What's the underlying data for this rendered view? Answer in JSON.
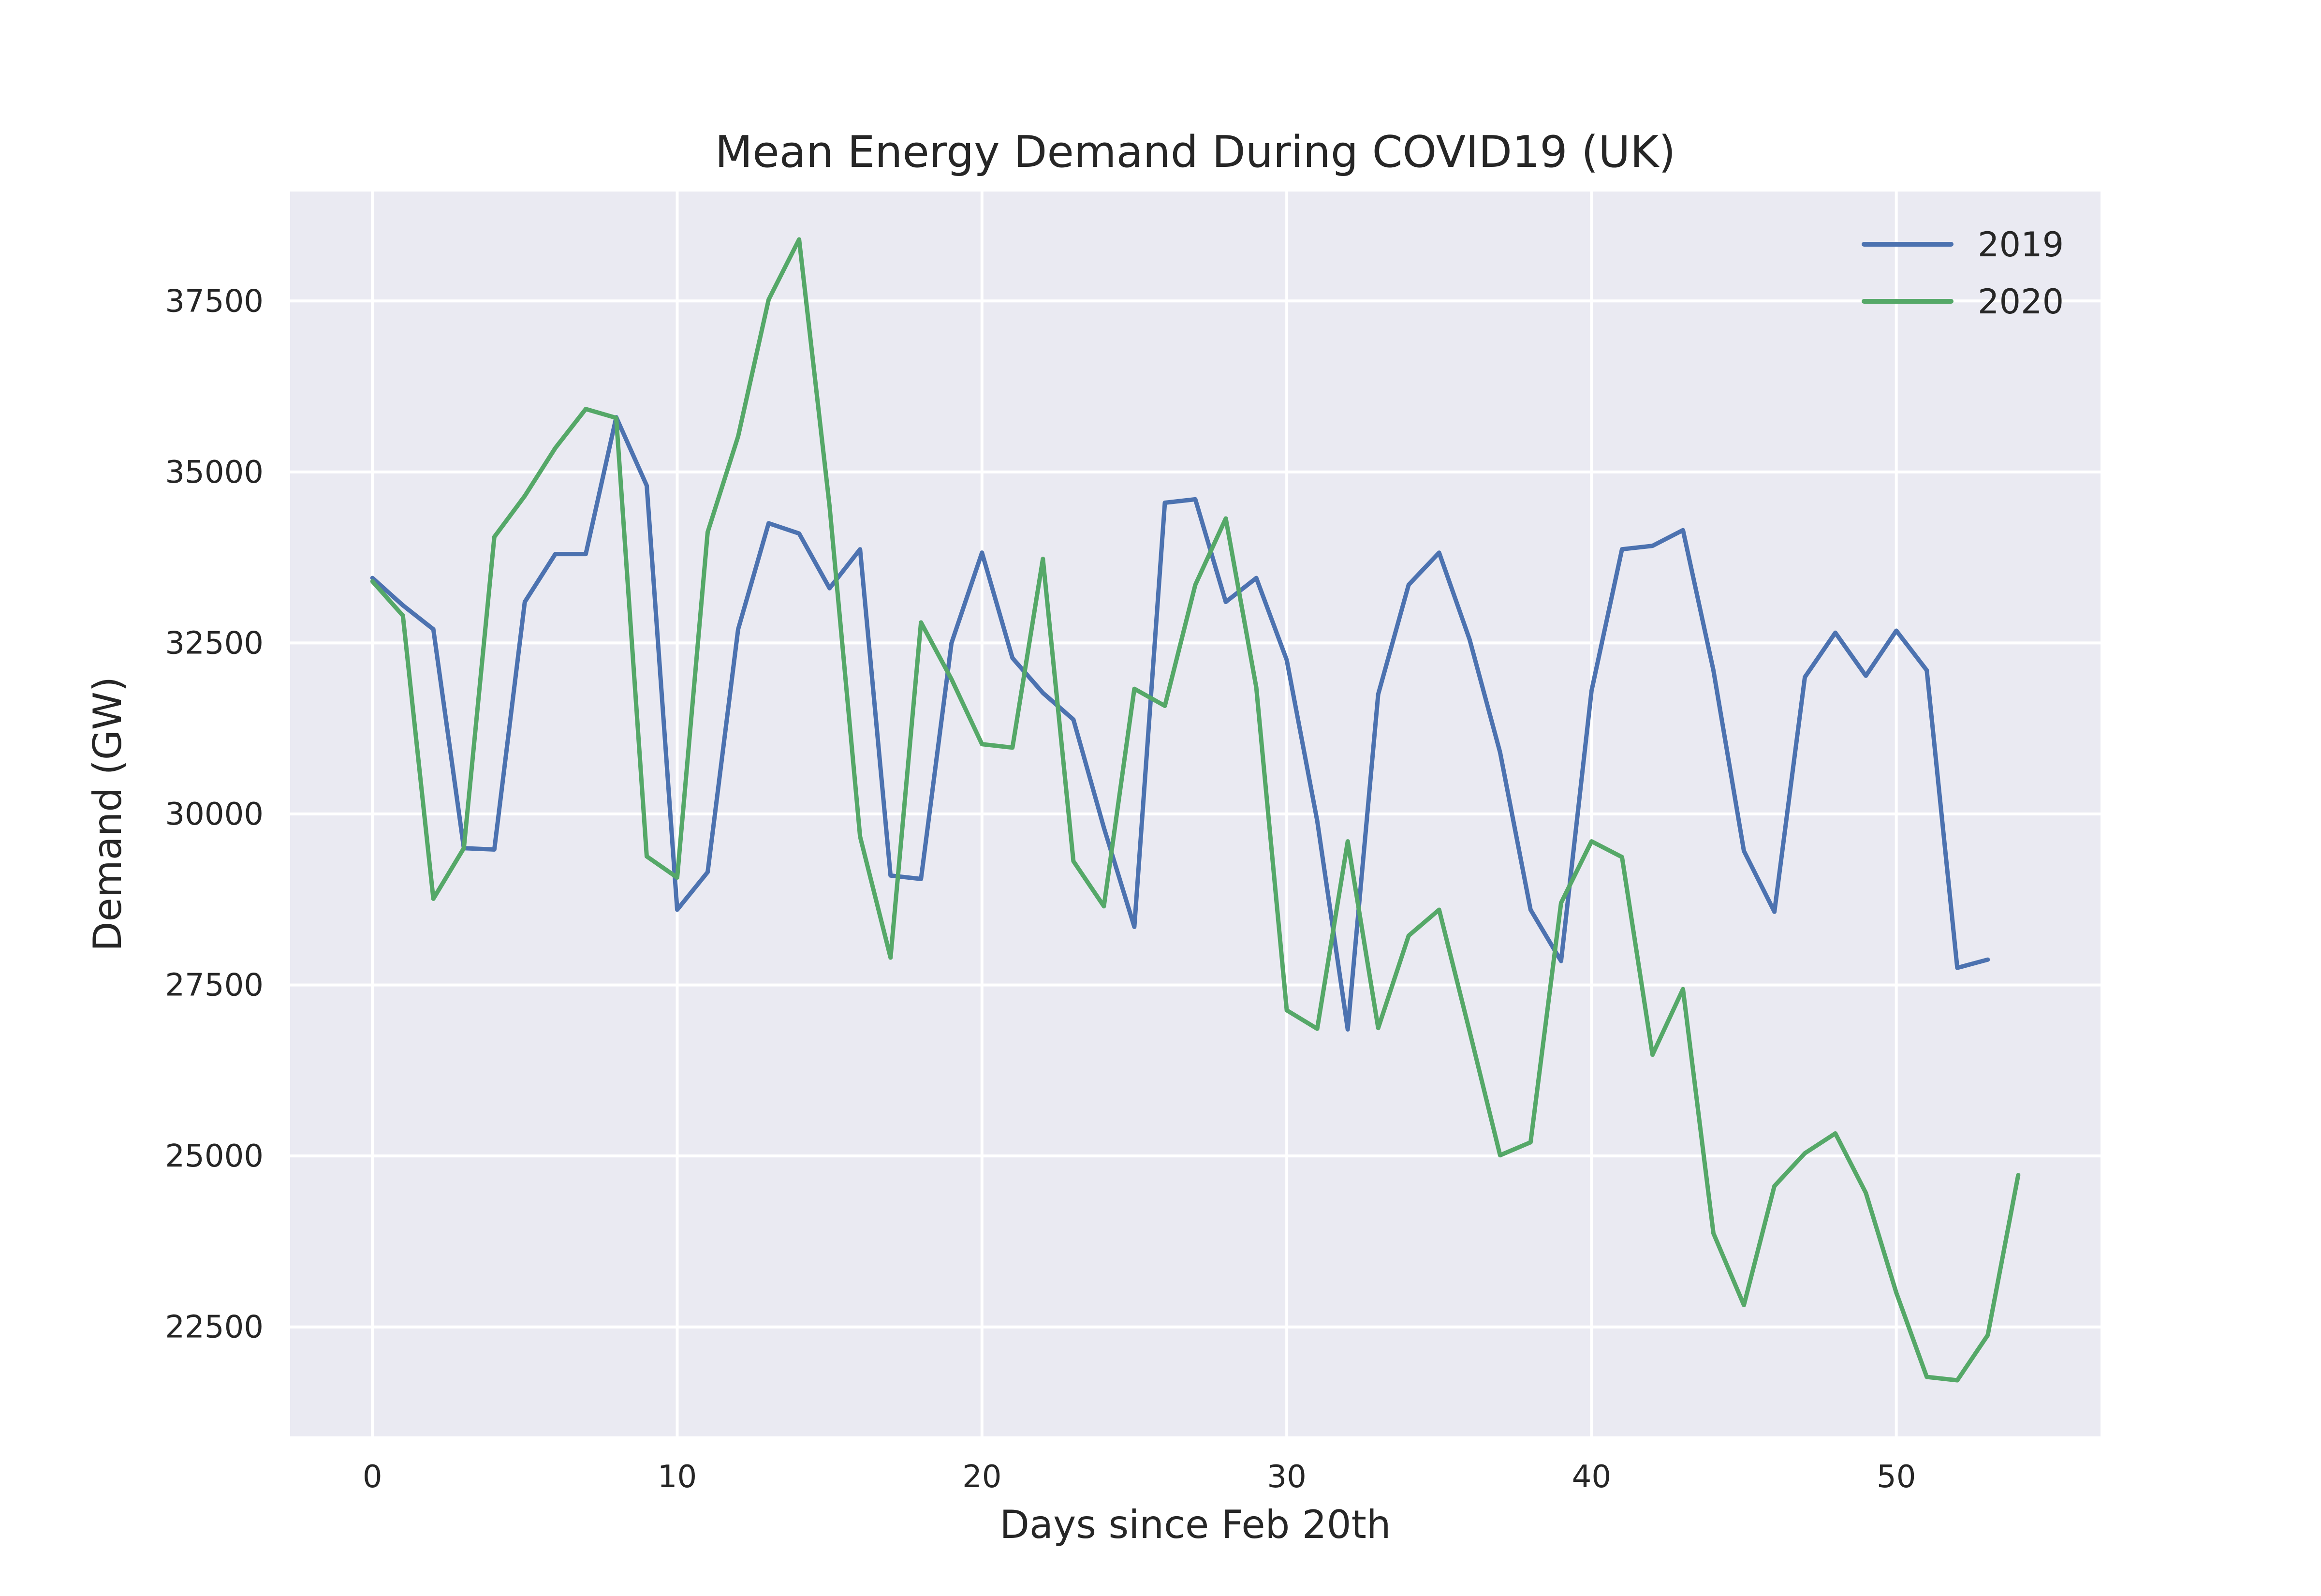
{
  "chart_data": {
    "type": "line",
    "title": "Mean Energy Demand During COVID19 (UK)",
    "xlabel": "Days since Feb 20th",
    "ylabel": "Demand (GW)",
    "xlim": [
      -2.7,
      56.7
    ],
    "ylim": [
      20900,
      39100
    ],
    "xticks": [
      0,
      10,
      20,
      30,
      40,
      50
    ],
    "yticks": [
      22500,
      25000,
      27500,
      30000,
      32500,
      35000,
      37500
    ],
    "grid": true,
    "background": "#eaeaf2",
    "legend_position": "top-right",
    "series": [
      {
        "name": "2019",
        "color": "#4c72b0",
        "x": [
          0,
          1,
          2,
          3,
          4,
          5,
          6,
          7,
          8,
          9,
          10,
          11,
          12,
          13,
          14,
          15,
          16,
          17,
          18,
          19,
          20,
          21,
          22,
          23,
          24,
          25,
          26,
          27,
          28,
          29,
          30,
          31,
          32,
          33,
          34,
          35,
          36,
          37,
          38,
          39,
          40,
          41,
          42,
          43,
          44,
          45,
          46,
          47,
          48,
          49,
          50,
          51,
          52,
          53
        ],
        "values": [
          33450,
          33050,
          32700,
          29500,
          29480,
          33100,
          33800,
          33800,
          35800,
          34800,
          28600,
          29150,
          32700,
          34250,
          34100,
          33300,
          33870,
          29100,
          29050,
          32500,
          33820,
          32280,
          31770,
          31380,
          29800,
          28350,
          34550,
          34600,
          33100,
          33450,
          32250,
          29900,
          26850,
          31750,
          33350,
          33820,
          32550,
          30900,
          28600,
          27850,
          31800,
          33870,
          33920,
          34150,
          32100,
          29460,
          28570,
          32000,
          32650,
          32020,
          32680,
          32100,
          27750,
          27870
        ]
      },
      {
        "name": "2020",
        "color": "#55a868",
        "x": [
          0,
          1,
          2,
          3,
          4,
          5,
          6,
          7,
          8,
          9,
          10,
          11,
          12,
          13,
          14,
          15,
          16,
          17,
          18,
          19,
          20,
          21,
          22,
          23,
          24,
          25,
          26,
          27,
          28,
          29,
          30,
          31,
          32,
          33,
          34,
          35,
          36,
          37,
          38,
          39,
          40,
          41,
          42,
          43,
          44,
          45,
          46,
          47,
          48,
          49,
          50,
          51,
          52,
          53,
          54
        ],
        "values": [
          33400,
          32900,
          28760,
          29500,
          34050,
          34650,
          35350,
          35920,
          35790,
          29380,
          29070,
          34120,
          35520,
          37520,
          38400,
          34500,
          29670,
          27900,
          32800,
          31970,
          31020,
          30970,
          33730,
          29310,
          28650,
          31830,
          31580,
          33350,
          34320,
          31850,
          27130,
          26860,
          29600,
          26870,
          28220,
          28600,
          26820,
          25010,
          25200,
          28700,
          29600,
          29370,
          26480,
          27440,
          23870,
          22820,
          24560,
          25040,
          25330,
          24460,
          23000,
          21770,
          21720,
          22380,
          24720
        ]
      }
    ]
  }
}
